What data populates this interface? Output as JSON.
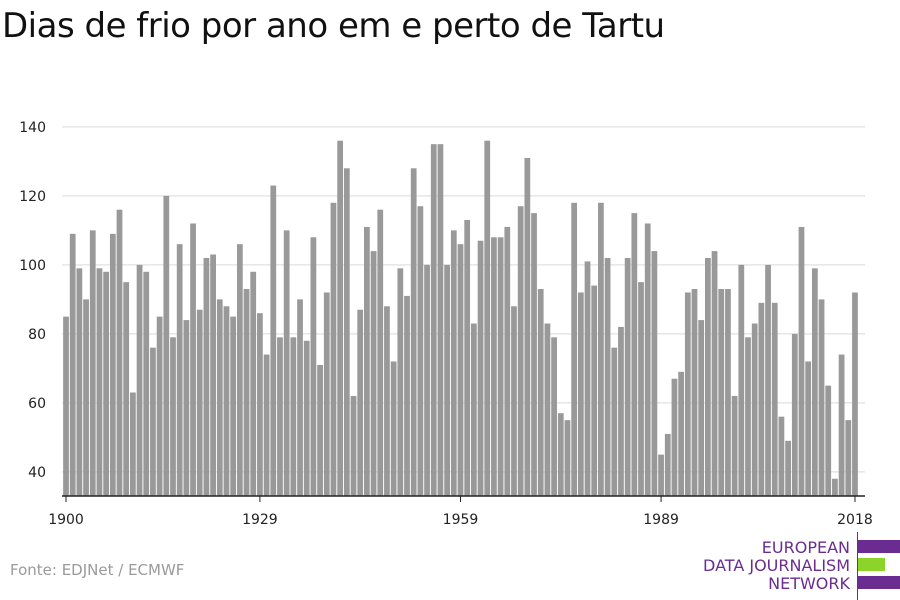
{
  "title": "Dias de frio por ano em e perto de Tartu",
  "source": "Fonte: EDJNet / ECMWF",
  "logo": {
    "lines": [
      "EUROPEAN",
      "DATA JOURNALISM",
      "NETWORK"
    ],
    "colors": {
      "purple": "#6a2c91",
      "green": "#8cd42a"
    }
  },
  "chart_data": {
    "type": "bar",
    "title": "Dias de frio por ano em e perto de Tartu",
    "xlabel": "",
    "ylabel": "",
    "ylim": [
      33,
      142
    ],
    "yticks": [
      40,
      60,
      80,
      100,
      120,
      140
    ],
    "xlim": [
      1899.4,
      2019.5
    ],
    "xticks": [
      1900,
      1929,
      1959,
      1989,
      2018
    ],
    "grid": true,
    "bar_color": "#999999",
    "x_start": 1900,
    "values": [
      85,
      109,
      99,
      90,
      110,
      99,
      98,
      109,
      116,
      95,
      63,
      100,
      98,
      76,
      85,
      120,
      79,
      106,
      84,
      112,
      87,
      102,
      103,
      90,
      88,
      85,
      106,
      93,
      98,
      86,
      74,
      123,
      79,
      110,
      79,
      90,
      78,
      108,
      71,
      92,
      118,
      136,
      128,
      62,
      87,
      111,
      104,
      116,
      88,
      72,
      99,
      91,
      128,
      117,
      100,
      135,
      135,
      100,
      110,
      106,
      113,
      83,
      107,
      136,
      108,
      108,
      111,
      88,
      117,
      131,
      115,
      93,
      83,
      79,
      57,
      55,
      118,
      92,
      101,
      94,
      118,
      102,
      76,
      82,
      102,
      115,
      95,
      112,
      104,
      45,
      51,
      67,
      69,
      92,
      93,
      84,
      102,
      104,
      93,
      93,
      62,
      100,
      79,
      83,
      89,
      100,
      89,
      56,
      49,
      80,
      111,
      72,
      99,
      90,
      65,
      38,
      74,
      55,
      92
    ]
  }
}
